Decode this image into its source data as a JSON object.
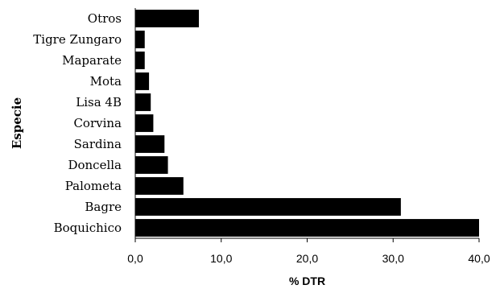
{
  "chart_data": {
    "type": "bar",
    "orientation": "horizontal",
    "categories": [
      "Otros",
      "Tigre Zungaro",
      "Maparate",
      "Mota",
      "Lisa 4B",
      "Corvina",
      "Sardina",
      "Doncella",
      "Palometa",
      "Bagre",
      "Boquichico"
    ],
    "values": [
      7.4,
      1.1,
      1.1,
      1.6,
      1.8,
      2.1,
      3.4,
      3.8,
      5.6,
      30.9,
      40.0
    ],
    "xlabel": "% DTR",
    "ylabel": "Especie",
    "xlim": [
      0,
      40
    ],
    "xticks": [
      "0,0",
      "10,0",
      "20,0",
      "30,0",
      "40,0"
    ],
    "bar_color": "#000000",
    "grid": false
  }
}
